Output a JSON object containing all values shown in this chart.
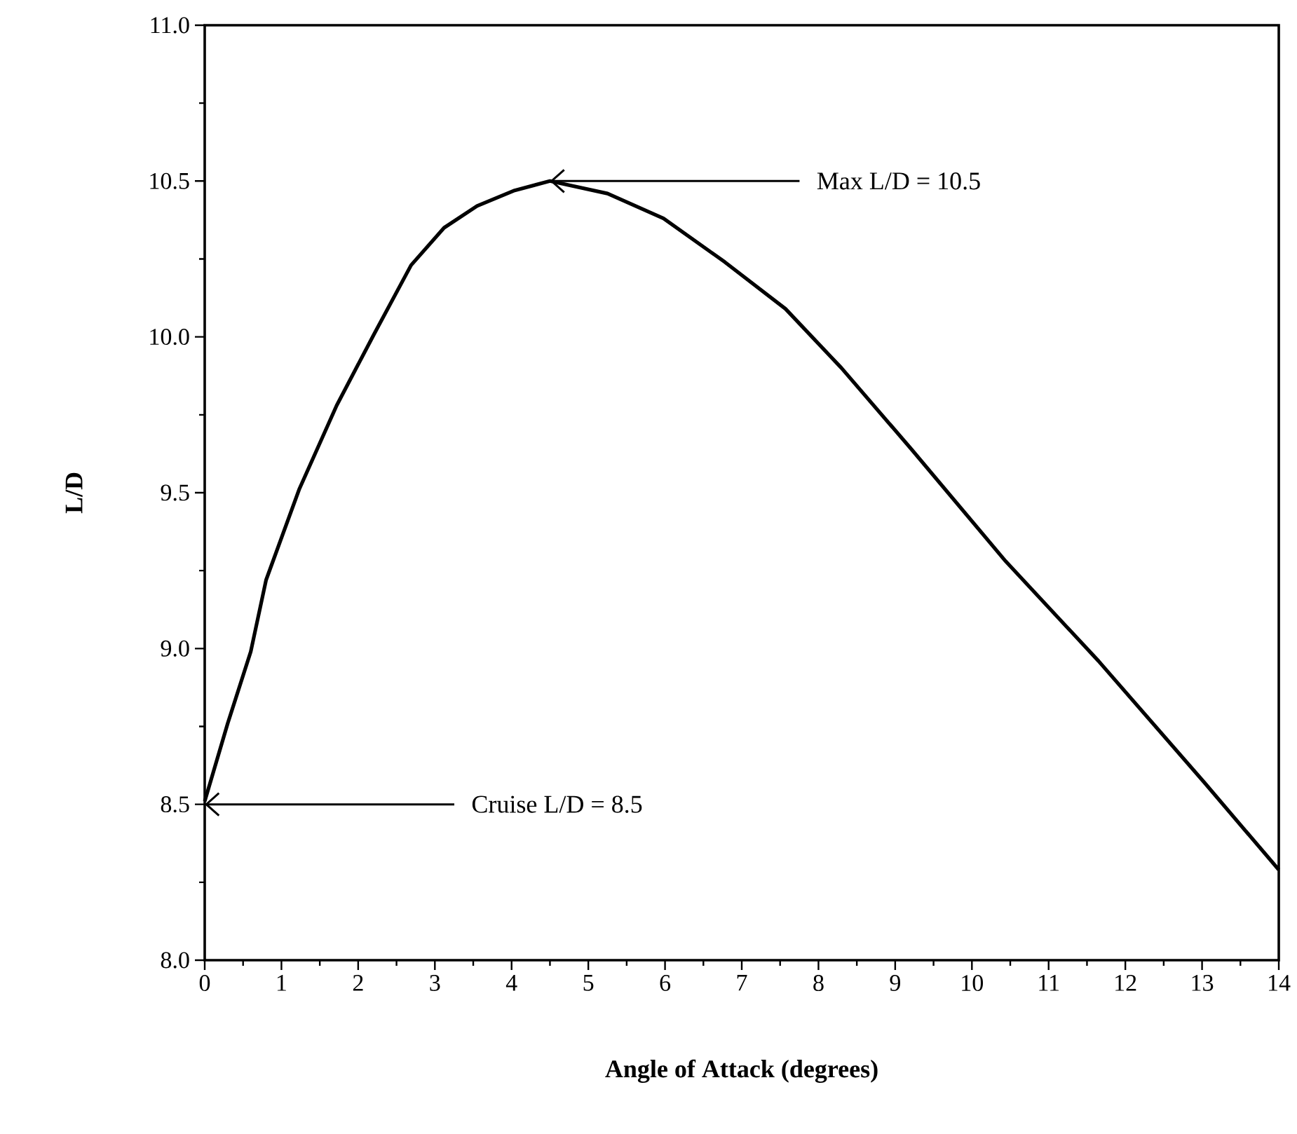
{
  "chart_data": {
    "type": "line",
    "xlabel": "Angle of Attack (degrees)",
    "ylabel": "L/D",
    "x": [
      0,
      0.3,
      0.6,
      0.8,
      1.23,
      1.72,
      2.21,
      2.69,
      3.12,
      3.55,
      4.04,
      4.5,
      5.25,
      5.98,
      6.78,
      7.57,
      8.3,
      9.21,
      10.44,
      11.65,
      13.03,
      14
    ],
    "values": [
      8.51,
      8.76,
      8.99,
      9.22,
      9.51,
      9.78,
      10.01,
      10.23,
      10.35,
      10.42,
      10.47,
      10.5,
      10.46,
      10.38,
      10.24,
      10.09,
      9.9,
      9.64,
      9.28,
      8.96,
      8.57,
      8.29
    ],
    "color": "#000000",
    "xlim": [
      0,
      14
    ],
    "ylim": [
      8,
      11
    ],
    "xticks": [
      0,
      1,
      2,
      3,
      4,
      5,
      6,
      7,
      8,
      9,
      10,
      11,
      12,
      13,
      14
    ],
    "yticks": [
      {
        "value": 8,
        "label": "8.0"
      },
      {
        "value": 8.5,
        "label": "8.5"
      },
      {
        "value": 9,
        "label": "9.0"
      },
      {
        "value": 9.5,
        "label": "9.5"
      },
      {
        "value": 10,
        "label": "10.0"
      },
      {
        "value": 10.5,
        "label": "10.5"
      },
      {
        "value": 11,
        "label": "11.0"
      }
    ],
    "annotations": [
      {
        "text": "Max L/D = 10.5",
        "x": 4.5,
        "y": 10.5
      },
      {
        "text": "Cruise L/D = 8.5",
        "x": 0,
        "y": 8.5
      }
    ]
  }
}
